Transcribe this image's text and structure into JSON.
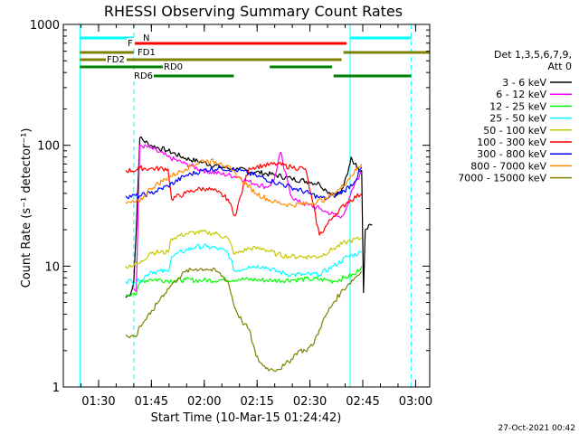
{
  "chart_data": {
    "type": "line",
    "title": "RHESSI Observing Summary Count Rates",
    "xlabel": "Start Time (10-Mar-15 01:24:42)",
    "ylabel": "Count Rate (s⁻¹ detector⁻¹)",
    "yscale": "log",
    "ylim": [
      1,
      1000
    ],
    "xlim_minutes": [
      -4.7,
      99.3
    ],
    "y_ticks": [
      {
        "value": 1,
        "label": "1"
      },
      {
        "value": 10,
        "label": "10"
      },
      {
        "value": 100,
        "label": "100"
      },
      {
        "value": 1000,
        "label": "1000"
      }
    ],
    "x_ticks": [
      {
        "minute": 5.3,
        "label": "01:30"
      },
      {
        "minute": 20.3,
        "label": "01:45"
      },
      {
        "minute": 35.3,
        "label": "02:00"
      },
      {
        "minute": 50.3,
        "label": "02:15"
      },
      {
        "minute": 65.3,
        "label": "02:30"
      },
      {
        "minute": 80.3,
        "label": "02:45"
      },
      {
        "minute": 95.3,
        "label": "03:00"
      }
    ],
    "legend_header": [
      "Det 1,3,5,6,7,9,",
      "Att 0"
    ],
    "legend_position": "right",
    "footer_date": "27-Oct-2021 00:42",
    "vertical_markers": [
      {
        "minute": 0.0,
        "color": "#00ffff",
        "style": "solid"
      },
      {
        "minute": 15.3,
        "color": "#00ffff",
        "style": "dashed"
      },
      {
        "minute": 76.7,
        "color": "#00ffff",
        "style": "solid"
      },
      {
        "minute": 94.0,
        "color": "#00ffff",
        "style": "dashed"
      }
    ],
    "flag_bars": [
      {
        "name": "N",
        "color": "#00ffff",
        "segments": [
          [
            0.0,
            15.3
          ],
          [
            76.7,
            94.0
          ]
        ]
      },
      {
        "name": "F",
        "color": "#ff0000",
        "segments": [
          [
            15.3,
            75.7
          ]
        ]
      },
      {
        "name": "FD1",
        "color": "#808000",
        "segments": [
          [
            0.0,
            15.3
          ],
          [
            74.8,
            99.3
          ]
        ]
      },
      {
        "name": "FD2",
        "color": "#808000",
        "segments": [
          [
            0.0,
            74.3
          ]
        ]
      },
      {
        "name": "RD0",
        "color": "#008000",
        "segments": [
          [
            0.0,
            25.9
          ],
          [
            53.9,
            71.6
          ]
        ]
      },
      {
        "name": "RD6",
        "color": "#008000",
        "segments": [
          [
            15.3,
            43.7
          ],
          [
            72.0,
            94.0
          ]
        ]
      }
    ],
    "series": [
      {
        "name": "3 - 6 keV",
        "color": "#000000",
        "x": [
          13,
          14.5,
          15.3,
          16,
          17,
          20,
          25,
          30,
          35,
          40,
          45,
          50,
          55,
          60,
          65,
          68,
          70,
          72,
          74,
          75,
          76,
          77,
          78,
          79,
          80,
          80.5,
          81,
          82,
          83
        ],
        "y": [
          5.5,
          6,
          7.5,
          20,
          115,
          100,
          90,
          78,
          72,
          66,
          63,
          60,
          57,
          53,
          50,
          48,
          42,
          40,
          40,
          48,
          58,
          80,
          70,
          65,
          62,
          6,
          20,
          22,
          22
        ]
      },
      {
        "name": "6 - 12 keV",
        "color": "#ff00ff",
        "x": [
          15.3,
          16,
          17,
          20,
          25,
          30,
          35,
          40,
          45,
          48,
          50,
          53,
          55,
          57,
          58,
          59,
          60,
          62,
          65,
          68,
          70,
          72,
          74,
          76,
          78,
          80
        ],
        "y": [
          6.5,
          6.2,
          100,
          95,
          80,
          70,
          62,
          58,
          55,
          50,
          48,
          45,
          50,
          88,
          62,
          50,
          38,
          34,
          32,
          30,
          28,
          27,
          25,
          32,
          48,
          60
        ]
      },
      {
        "name": "12 - 25 keV",
        "color": "#00ff00",
        "x": [
          13,
          15.3,
          16,
          17.2,
          20,
          25,
          30,
          35,
          40,
          45,
          50,
          55,
          60,
          65,
          70,
          72,
          75,
          78,
          80
        ],
        "y": [
          5.8,
          6,
          5.8,
          7.5,
          7.8,
          7.6,
          7.7,
          7.6,
          7.7,
          7.8,
          7.7,
          7.6,
          7.7,
          7.8,
          7.7,
          7.5,
          8,
          8.5,
          10
        ]
      },
      {
        "name": "25 - 50 keV",
        "color": "#00ffff",
        "x": [
          13,
          17,
          20,
          25,
          26,
          30,
          33,
          36,
          39,
          42,
          44,
          48,
          52,
          56,
          60,
          64,
          68,
          72,
          76,
          80
        ],
        "y": [
          7.5,
          7.5,
          9,
          9,
          12,
          13.5,
          14.5,
          14.5,
          14,
          13,
          9,
          10,
          10,
          9,
          8.5,
          8.5,
          8.5,
          10,
          12,
          13
        ]
      },
      {
        "name": "50 - 100 keV",
        "color": "#c8c800",
        "x": [
          13,
          17,
          20,
          25,
          26,
          30,
          33,
          36,
          39,
          42,
          44,
          48,
          52,
          56,
          60,
          64,
          68,
          72,
          76,
          80
        ],
        "y": [
          10,
          10.5,
          13,
          13,
          17,
          18.5,
          19,
          19,
          18.5,
          17,
          12.5,
          14,
          14,
          12.5,
          12,
          12,
          12,
          14,
          16,
          17
        ]
      },
      {
        "name": "100 - 300 keV",
        "color": "#ff0000",
        "x": [
          13,
          16,
          17,
          20,
          25,
          26,
          30,
          33,
          36,
          39,
          42,
          44,
          48,
          52,
          56,
          60,
          64,
          68,
          72,
          76,
          80
        ],
        "y": [
          62,
          62,
          65,
          64,
          64,
          36,
          40,
          43,
          44,
          41,
          36,
          26,
          65,
          68,
          70,
          66,
          64,
          18,
          26,
          34,
          40
        ]
      },
      {
        "name": "300 - 800 keV",
        "color": "#0000ff",
        "x": [
          13,
          17,
          20,
          25,
          30,
          35,
          40,
          45,
          50,
          55,
          60,
          65,
          68,
          70,
          72,
          75,
          78,
          80
        ],
        "y": [
          38,
          38,
          40,
          46,
          56,
          62,
          65,
          62,
          56,
          50,
          45,
          40,
          37,
          36,
          38,
          42,
          50,
          66
        ]
      },
      {
        "name": "800 - 7000 keV",
        "color": "#ff8c00",
        "x": [
          13,
          17,
          20,
          25,
          30,
          35,
          40,
          43,
          45,
          50,
          55,
          60,
          65,
          70,
          74,
          77,
          80
        ],
        "y": [
          33,
          34,
          44,
          54,
          64,
          75,
          72,
          62,
          55,
          40,
          34,
          32,
          33,
          36,
          44,
          56,
          70
        ]
      },
      {
        "name": "7000 - 15000 keV",
        "color": "#808000",
        "x": [
          13,
          16,
          17,
          20,
          23,
          26,
          28,
          30,
          33,
          36,
          39,
          42,
          44,
          46,
          48,
          50,
          52,
          54,
          56,
          58,
          60,
          62,
          64,
          66,
          68,
          70,
          72,
          74,
          76,
          78,
          80
        ],
        "y": [
          2.7,
          2.6,
          3.2,
          4,
          5.5,
          7,
          8,
          9,
          9.5,
          9.5,
          9,
          7.5,
          4.5,
          3.5,
          3,
          1.8,
          1.5,
          1.4,
          1.4,
          1.5,
          1.7,
          2,
          2,
          2.2,
          3,
          4,
          5,
          6,
          7,
          8,
          9
        ]
      }
    ]
  }
}
